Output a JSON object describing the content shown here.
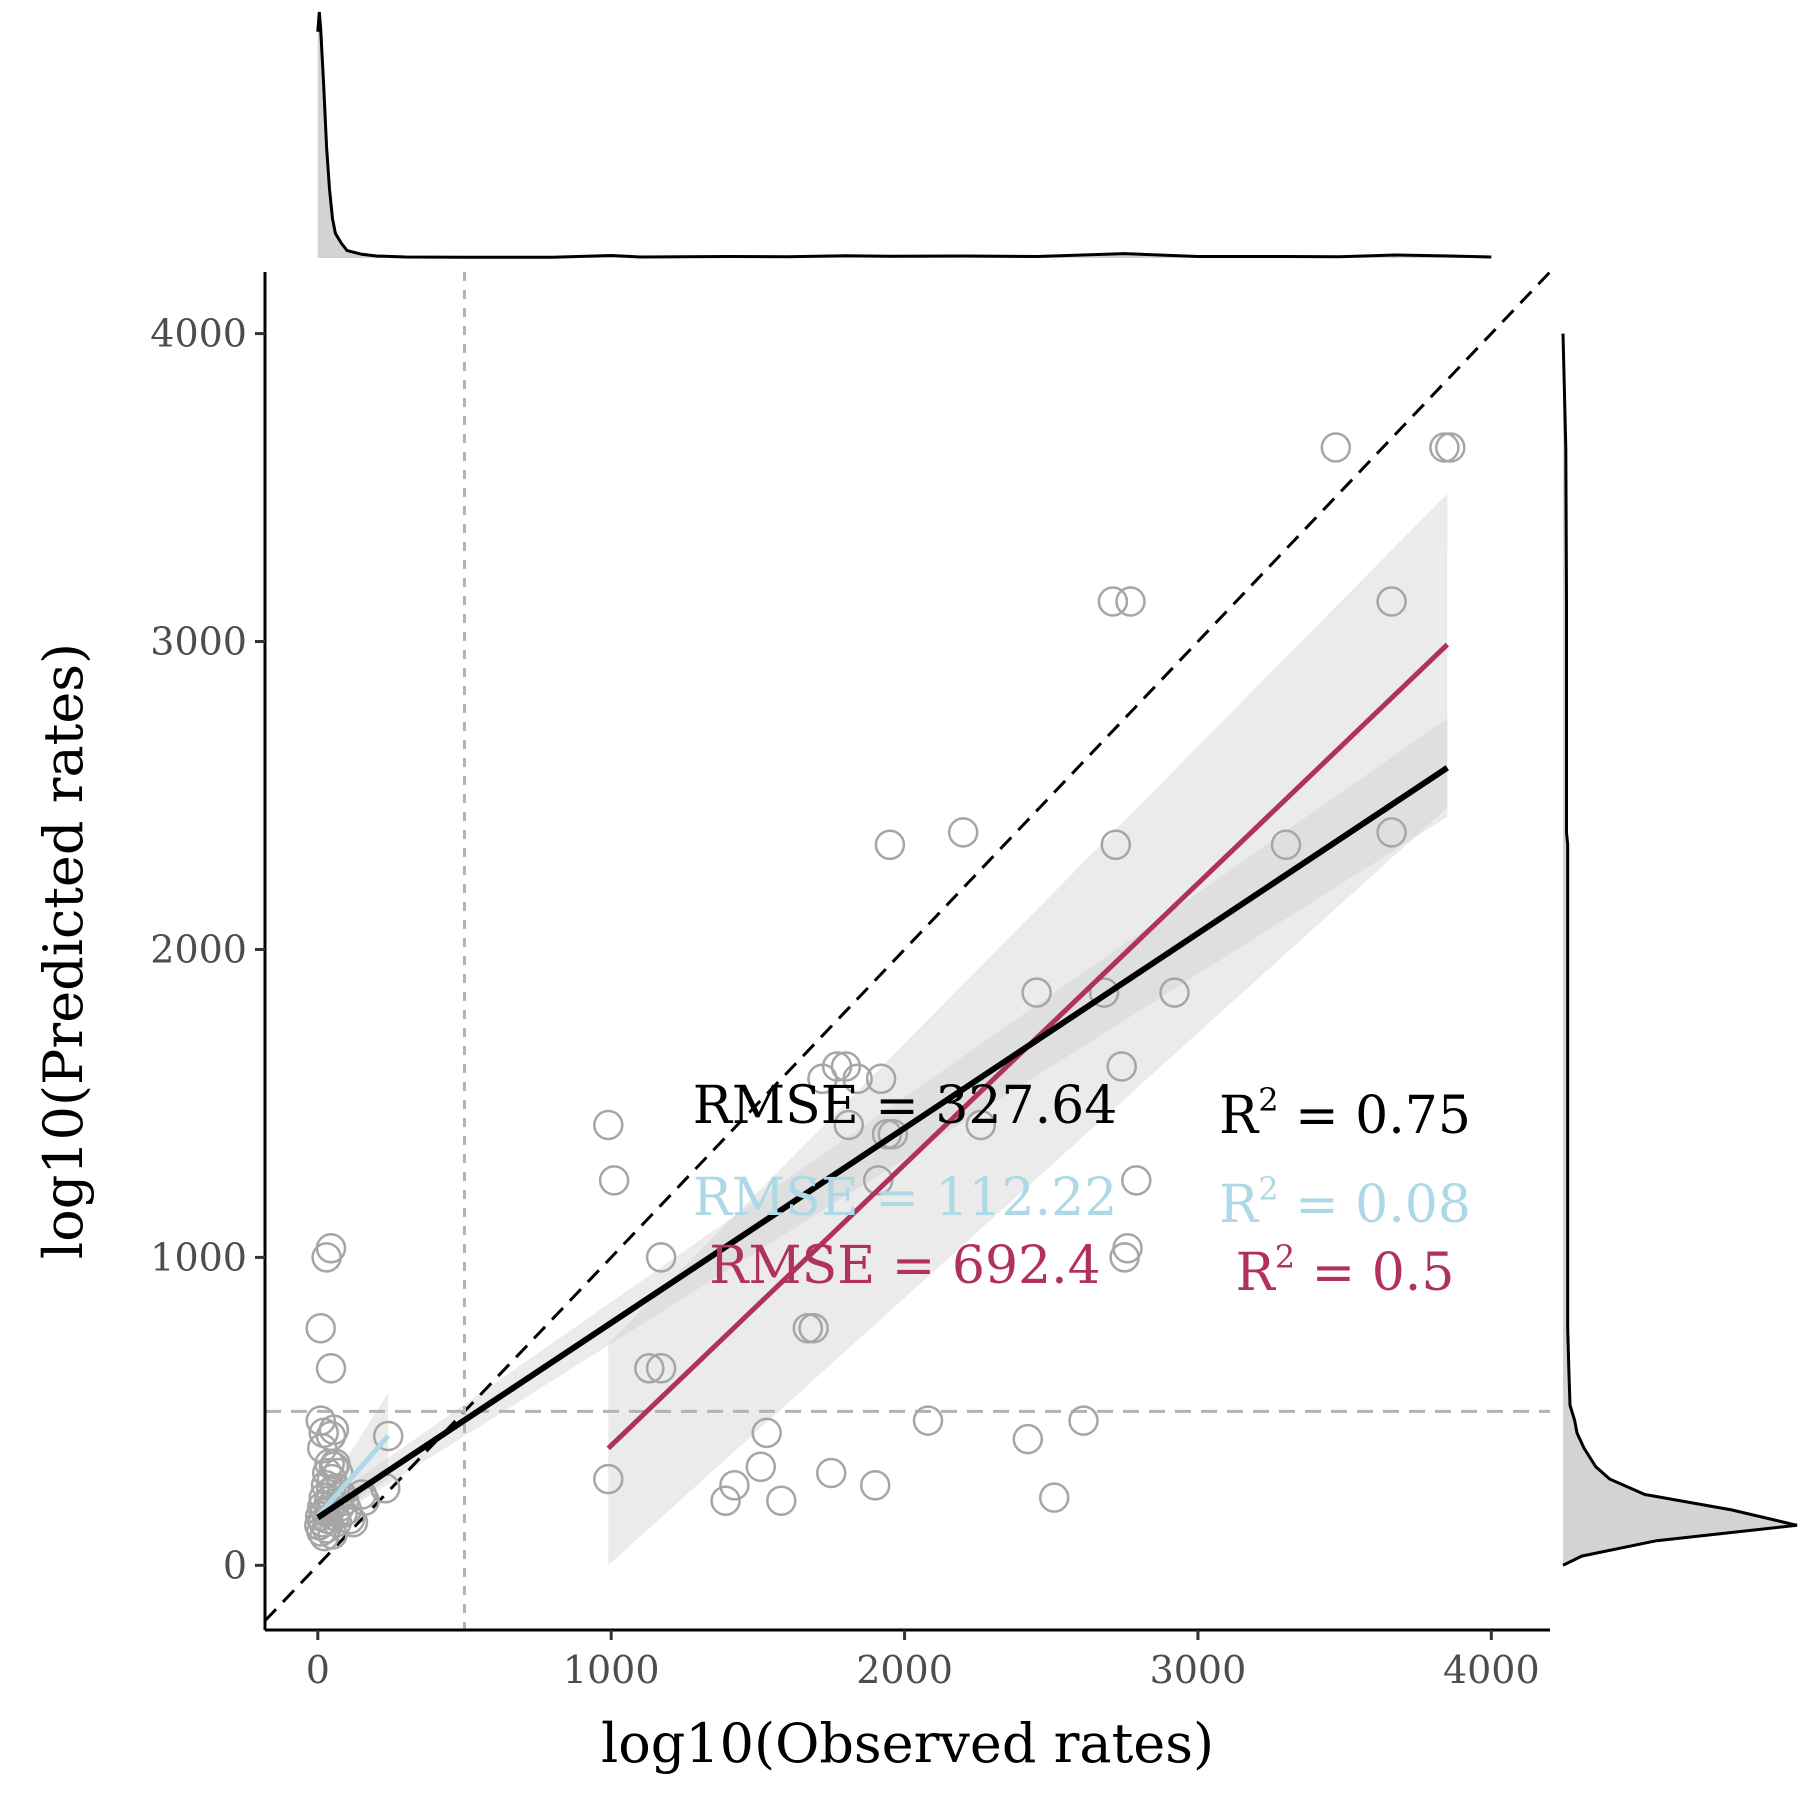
{
  "chart_data": {
    "type": "scatter",
    "xlabel": "log10(Observed rates)",
    "ylabel": "log10(Predicted rates)",
    "xlim": [
      -180,
      4200
    ],
    "ylim": [
      -210,
      4200
    ],
    "x_ticks": [
      "0",
      "1000",
      "2000",
      "3000",
      "4000"
    ],
    "y_ticks": [
      "0",
      "1000",
      "2000",
      "3000",
      "4000"
    ],
    "x_tick_values": [
      0,
      1000,
      2000,
      3000,
      4000
    ],
    "y_tick_values": [
      0,
      1000,
      2000,
      3000,
      4000
    ],
    "grid": false,
    "colors": {
      "points": "#a6a6a6",
      "overall_fit": "#000000",
      "low_fit": "#add8e6",
      "high_fit": "#b03060",
      "ribbon": "#e0e0e0",
      "reference_lines": "#b3b3b3"
    },
    "reference_lines": {
      "identity": [
        [
          -180,
          -180
        ],
        [
          4200,
          4200
        ]
      ],
      "vertical_x": 500,
      "horizontal_y": 500
    },
    "points": [
      [
        5,
        130
      ],
      [
        8,
        160
      ],
      [
        12,
        110
      ],
      [
        15,
        190
      ],
      [
        18,
        140
      ],
      [
        20,
        220
      ],
      [
        22,
        95
      ],
      [
        25,
        175
      ],
      [
        28,
        260
      ],
      [
        30,
        120
      ],
      [
        32,
        300
      ],
      [
        35,
        150
      ],
      [
        38,
        210
      ],
      [
        40,
        330
      ],
      [
        42,
        180
      ],
      [
        45,
        240
      ],
      [
        48,
        280
      ],
      [
        50,
        100
      ],
      [
        52,
        200
      ],
      [
        55,
        320
      ],
      [
        58,
        160
      ],
      [
        60,
        250
      ],
      [
        65,
        140
      ],
      [
        70,
        300
      ],
      [
        75,
        190
      ],
      [
        80,
        230
      ],
      [
        85,
        170
      ],
      [
        90,
        210
      ],
      [
        100,
        180
      ],
      [
        110,
        150
      ],
      [
        120,
        140
      ],
      [
        150,
        230
      ],
      [
        160,
        210
      ],
      [
        230,
        250
      ],
      [
        240,
        420
      ],
      [
        10,
        470
      ],
      [
        15,
        380
      ],
      [
        20,
        430
      ],
      [
        45,
        420
      ],
      [
        55,
        440
      ],
      [
        60,
        330
      ],
      [
        10,
        770
      ],
      [
        45,
        640
      ],
      [
        30,
        1000
      ],
      [
        45,
        1030
      ],
      [
        990,
        280
      ],
      [
        990,
        1430
      ],
      [
        1010,
        1250
      ],
      [
        1130,
        640
      ],
      [
        1170,
        640
      ],
      [
        1170,
        1000
      ],
      [
        1390,
        210
      ],
      [
        1420,
        260
      ],
      [
        1510,
        320
      ],
      [
        1530,
        430
      ],
      [
        1580,
        210
      ],
      [
        1670,
        770
      ],
      [
        1690,
        770
      ],
      [
        1720,
        1580
      ],
      [
        1750,
        300
      ],
      [
        1770,
        1620
      ],
      [
        1800,
        1620
      ],
      [
        1810,
        1430
      ],
      [
        1840,
        1580
      ],
      [
        1900,
        260
      ],
      [
        1910,
        1250
      ],
      [
        1920,
        1580
      ],
      [
        1940,
        1400
      ],
      [
        1950,
        2340
      ],
      [
        1960,
        1400
      ],
      [
        2080,
        470
      ],
      [
        2200,
        2380
      ],
      [
        2260,
        1430
      ],
      [
        2420,
        410
      ],
      [
        2450,
        1860
      ],
      [
        2510,
        220
      ],
      [
        2610,
        470
      ],
      [
        2680,
        1860
      ],
      [
        2710,
        3130
      ],
      [
        2720,
        2340
      ],
      [
        2740,
        1620
      ],
      [
        2750,
        1000
      ],
      [
        2760,
        1030
      ],
      [
        2770,
        3130
      ],
      [
        2790,
        1250
      ],
      [
        2920,
        1860
      ],
      [
        3300,
        2340
      ],
      [
        3470,
        3630
      ],
      [
        3660,
        3130
      ],
      [
        3660,
        2380
      ],
      [
        3840,
        3630
      ],
      [
        3860,
        3630
      ]
    ],
    "series": [
      {
        "role": "overall",
        "x": [
          0,
          3850
        ],
        "y": [
          155,
          2590
        ],
        "ribbon_lo": [
          120,
          2430
        ],
        "ribbon_hi": [
          190,
          2750
        ]
      },
      {
        "role": "low",
        "x": [
          0,
          240
        ],
        "y": [
          160,
          420
        ],
        "ribbon_lo": [
          120,
          280
        ],
        "ribbon_hi": [
          200,
          560
        ]
      },
      {
        "role": "high",
        "x": [
          990,
          3850
        ],
        "y": [
          380,
          2990
        ],
        "ribbon_lo": [
          0,
          2460
        ],
        "ribbon_hi": [
          720,
          3480
        ]
      }
    ],
    "annotations": [
      {
        "rmse": "RMSE = 327.64",
        "r2_prefix": "R",
        "r2_sup": "2",
        "r2_value": " = 0.75",
        "color": "#000000"
      },
      {
        "rmse": "RMSE = 112.22",
        "r2_prefix": "R",
        "r2_sup": "2",
        "r2_value": " = 0.08",
        "color": "#add8e6"
      },
      {
        "rmse": "RMSE = 692.4",
        "r2_prefix": "R",
        "r2_sup": "2",
        "r2_value": " = 0.5",
        "color": "#b03060"
      }
    ],
    "marginal_x_density": [
      [
        0,
        0.92
      ],
      [
        5,
        1.0
      ],
      [
        10,
        0.93
      ],
      [
        20,
        0.7
      ],
      [
        30,
        0.45
      ],
      [
        40,
        0.28
      ],
      [
        50,
        0.16
      ],
      [
        60,
        0.1
      ],
      [
        80,
        0.06
      ],
      [
        100,
        0.03
      ],
      [
        150,
        0.015
      ],
      [
        200,
        0.008
      ],
      [
        300,
        0.004
      ],
      [
        500,
        0.003
      ],
      [
        800,
        0.003
      ],
      [
        1000,
        0.01
      ],
      [
        1100,
        0.004
      ],
      [
        1400,
        0.006
      ],
      [
        1600,
        0.005
      ],
      [
        1800,
        0.009
      ],
      [
        1950,
        0.007
      ],
      [
        2200,
        0.008
      ],
      [
        2450,
        0.006
      ],
      [
        2750,
        0.018
      ],
      [
        3000,
        0.006
      ],
      [
        3300,
        0.006
      ],
      [
        3480,
        0.005
      ],
      [
        3670,
        0.012
      ],
      [
        3860,
        0.008
      ],
      [
        4000,
        0.004
      ]
    ],
    "marginal_y_density": [
      [
        0,
        0.0
      ],
      [
        30,
        0.08
      ],
      [
        80,
        0.4
      ],
      [
        130,
        1.0
      ],
      [
        180,
        0.72
      ],
      [
        230,
        0.35
      ],
      [
        280,
        0.2
      ],
      [
        320,
        0.14
      ],
      [
        380,
        0.09
      ],
      [
        430,
        0.06
      ],
      [
        470,
        0.05
      ],
      [
        520,
        0.03
      ],
      [
        640,
        0.025
      ],
      [
        770,
        0.02
      ],
      [
        1000,
        0.02
      ],
      [
        1250,
        0.02
      ],
      [
        1430,
        0.02
      ],
      [
        1600,
        0.02
      ],
      [
        1860,
        0.02
      ],
      [
        2340,
        0.02
      ],
      [
        2380,
        0.015
      ],
      [
        3130,
        0.015
      ],
      [
        3630,
        0.012
      ],
      [
        4000,
        0.0
      ]
    ]
  }
}
